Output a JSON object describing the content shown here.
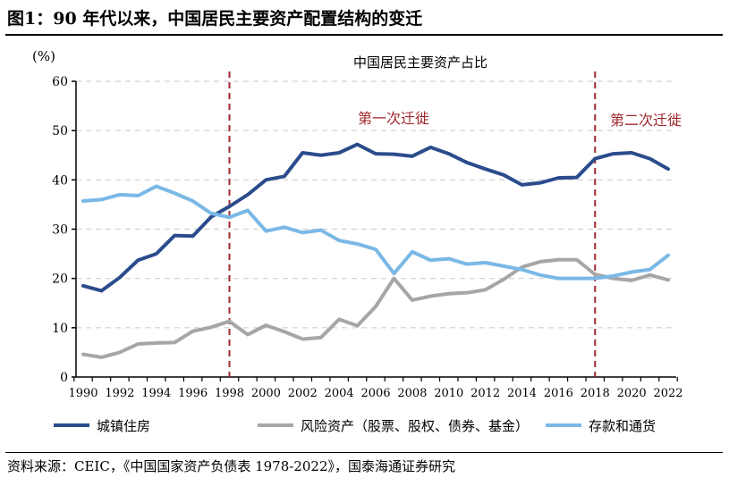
{
  "title": "图1：90 年代以来，中国居民主要资产配置结构的变迁",
  "source": "资料来源：CEIC，《中国国家资产负债表 1978-2022》，国泰海通证券研究",
  "chart_data": {
    "type": "line",
    "title": "中国居民主要资产占比",
    "ylabel": "(%)",
    "ylim": [
      0,
      60
    ],
    "yticks": [
      0,
      10,
      20,
      30,
      40,
      50,
      60
    ],
    "grid": "horizontal dashed",
    "legend_position": "bottom",
    "x": [
      1990,
      1991,
      1992,
      1993,
      1994,
      1995,
      1996,
      1997,
      1998,
      1999,
      2000,
      2001,
      2002,
      2003,
      2004,
      2005,
      2006,
      2007,
      2008,
      2009,
      2010,
      2011,
      2012,
      2013,
      2014,
      2015,
      2016,
      2017,
      2018,
      2019,
      2020,
      2021,
      2022
    ],
    "xticks": [
      "1990",
      "1992",
      "1994",
      "1996",
      "1998",
      "2000",
      "2002",
      "2004",
      "2006",
      "2008",
      "2010",
      "2012",
      "2014",
      "2016",
      "2018",
      "2020",
      "2022"
    ],
    "series": [
      {
        "name": "城镇住房",
        "color": "#2B4C8C",
        "values": [
          18.5,
          17.5,
          20.2,
          23.7,
          25,
          28.7,
          28.6,
          32.5,
          34.6,
          37,
          40,
          40.7,
          45.5,
          45,
          45.5,
          47.2,
          45.3,
          45.2,
          44.8,
          46.6,
          45.3,
          43.5,
          42.2,
          41,
          39,
          39.4,
          40.4,
          40.5,
          44.3,
          45.3,
          45.5,
          44.3,
          42.2
        ]
      },
      {
        "name": "风险资产（股票、股权、债券、基金）",
        "color": "#A6A6A6",
        "values": [
          4.6,
          4,
          5,
          6.7,
          6.9,
          7,
          9.3,
          10.1,
          11.3,
          8.6,
          10.5,
          9.2,
          7.7,
          8,
          11.7,
          10.4,
          14.3,
          20,
          15.6,
          16.4,
          16.9,
          17.1,
          17.7,
          19.8,
          22.3,
          23.4,
          23.8,
          23.8,
          20.8,
          20,
          19.6,
          20.7,
          19.7
        ]
      },
      {
        "name": "存款和通货",
        "color": "#7AB8E6",
        "values": [
          35.7,
          36,
          37,
          36.8,
          38.7,
          37.3,
          35.7,
          33.2,
          32.4,
          33.8,
          29.6,
          30.4,
          29.3,
          29.8,
          27.7,
          27,
          25.9,
          21,
          25.4,
          23.7,
          24,
          22.9,
          23.2,
          22.5,
          21.8,
          20.7,
          20,
          20,
          20,
          20.5,
          21.3,
          21.8,
          24.7
        ]
      }
    ],
    "annotations": [
      {
        "x": 1998,
        "type": "vline",
        "color": "#A0282D"
      },
      {
        "x": 2018,
        "type": "vline",
        "color": "#A0282D"
      },
      {
        "text": "第一次迁徙",
        "color": "#A0282D"
      },
      {
        "text": "第二次迁徙",
        "color": "#A0282D"
      }
    ]
  }
}
